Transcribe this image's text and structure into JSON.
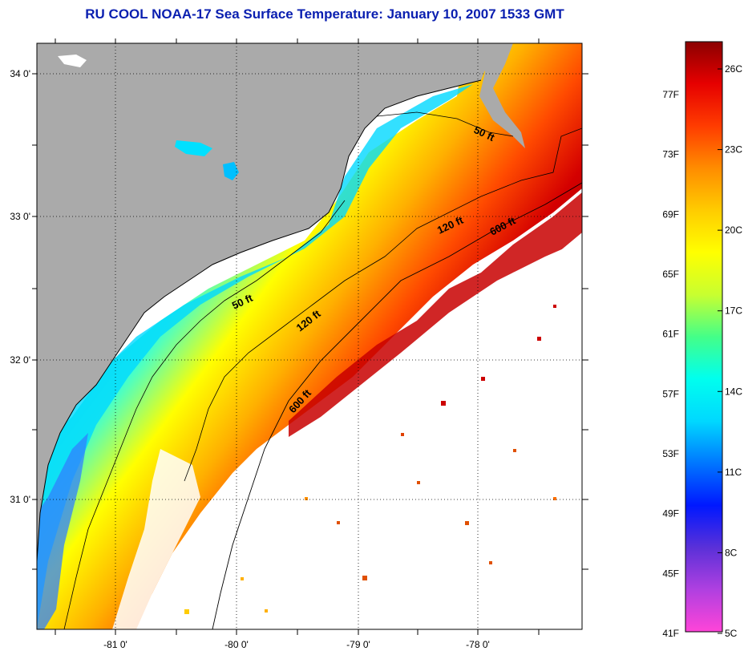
{
  "title": "RU COOL  NOAA-17  Sea Surface Temperature:  January 10, 2007 1533 GMT",
  "map": {
    "lat_labels": [
      "34 0'",
      "33 0'",
      "32 0'",
      "31 0'"
    ],
    "lon_labels": [
      "-81 0'",
      "-80 0'",
      "-79 0'",
      "-78 0'"
    ],
    "isobath_labels": {
      "ft50_a": "50 ft",
      "ft50_b": "50 ft",
      "ft120_a": "120 ft",
      "ft120_b": "120 ft",
      "ft600_a": "600 ft",
      "ft600_b": "600 ft"
    },
    "colors": {
      "land": "#aaaaaa",
      "cloud": "#ffffff",
      "coast": "#000000",
      "grid": "#000000"
    }
  },
  "colorbar": {
    "fahrenheit": [
      "77F",
      "73F",
      "69F",
      "65F",
      "61F",
      "57F",
      "53F",
      "49F",
      "45F",
      "41F"
    ],
    "celsius": [
      "26C",
      "23C",
      "20C",
      "17C",
      "14C",
      "11C",
      "8C",
      "5C"
    ],
    "stops": [
      "#ff44d8",
      "#b040e0",
      "#5a30d8",
      "#0018ff",
      "#0077ff",
      "#00d8ff",
      "#00ffee",
      "#44ff88",
      "#c8ff30",
      "#ffff00",
      "#ffcc00",
      "#ff8c00",
      "#ff3c00",
      "#e60000",
      "#8b0000"
    ]
  }
}
